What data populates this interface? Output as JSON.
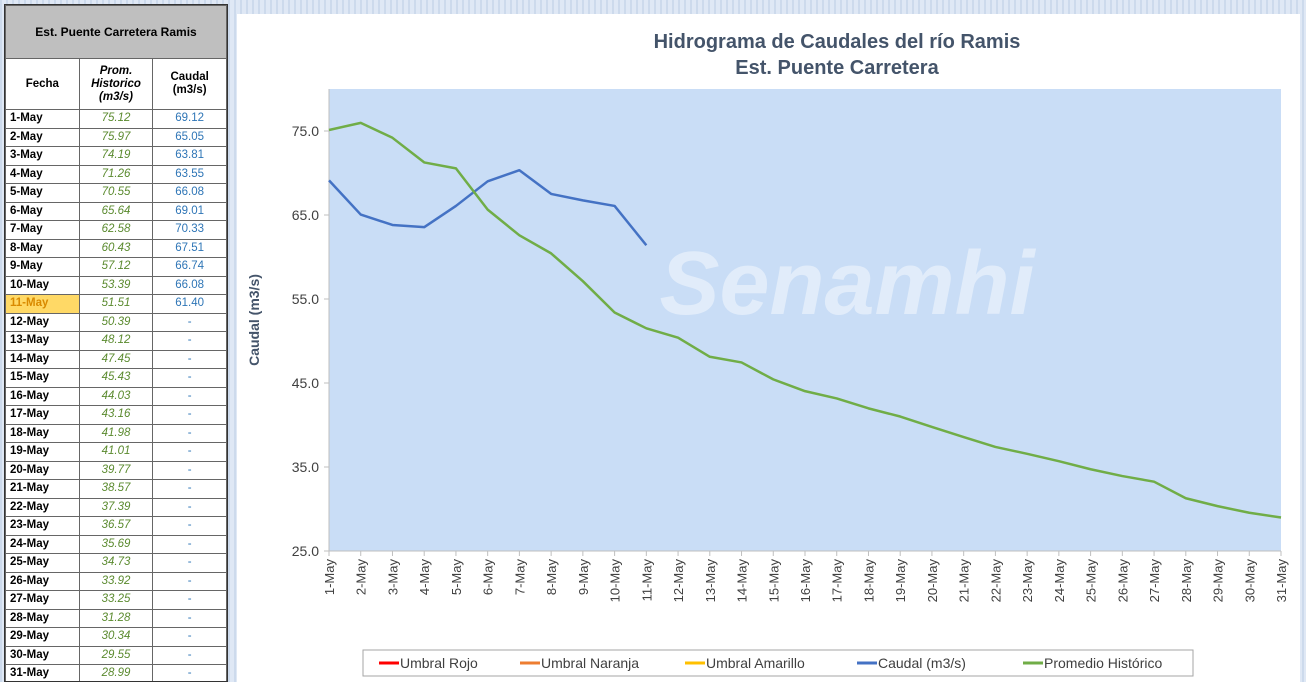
{
  "table": {
    "title": "Est. Puente Carretera Ramis",
    "headers": [
      "Fecha",
      "Prom. Historico (m3/s)",
      "Caudal (m3/s)"
    ],
    "rows": [
      [
        "1-May",
        "75.12",
        "69.12"
      ],
      [
        "2-May",
        "75.97",
        "65.05"
      ],
      [
        "3-May",
        "74.19",
        "63.81"
      ],
      [
        "4-May",
        "71.26",
        "63.55"
      ],
      [
        "5-May",
        "70.55",
        "66.08"
      ],
      [
        "6-May",
        "65.64",
        "69.01"
      ],
      [
        "7-May",
        "62.58",
        "70.33"
      ],
      [
        "8-May",
        "60.43",
        "67.51"
      ],
      [
        "9-May",
        "57.12",
        "66.74"
      ],
      [
        "10-May",
        "53.39",
        "66.08"
      ],
      [
        "11-May",
        "51.51",
        "61.40"
      ],
      [
        "12-May",
        "50.39",
        "-"
      ],
      [
        "13-May",
        "48.12",
        "-"
      ],
      [
        "14-May",
        "47.45",
        "-"
      ],
      [
        "15-May",
        "45.43",
        "-"
      ],
      [
        "16-May",
        "44.03",
        "-"
      ],
      [
        "17-May",
        "43.16",
        "-"
      ],
      [
        "18-May",
        "41.98",
        "-"
      ],
      [
        "19-May",
        "41.01",
        "-"
      ],
      [
        "20-May",
        "39.77",
        "-"
      ],
      [
        "21-May",
        "38.57",
        "-"
      ],
      [
        "22-May",
        "37.39",
        "-"
      ],
      [
        "23-May",
        "36.57",
        "-"
      ],
      [
        "24-May",
        "35.69",
        "-"
      ],
      [
        "25-May",
        "34.73",
        "-"
      ],
      [
        "26-May",
        "33.92",
        "-"
      ],
      [
        "27-May",
        "33.25",
        "-"
      ],
      [
        "28-May",
        "31.28",
        "-"
      ],
      [
        "29-May",
        "30.34",
        "-"
      ],
      [
        "30-May",
        "29.55",
        "-"
      ],
      [
        "31-May",
        "28.99",
        "-"
      ]
    ],
    "highlight_row": 10
  },
  "chart_data": {
    "type": "line",
    "title": "Hidrograma de Caudales del río Ramis",
    "subtitle": "Est. Puente Carretera",
    "ylabel": "Caudal (m3/s)",
    "watermark": "Senamhi",
    "categories": [
      "1-May",
      "2-May",
      "3-May",
      "4-May",
      "5-May",
      "6-May",
      "7-May",
      "8-May",
      "9-May",
      "10-May",
      "11-May",
      "12-May",
      "13-May",
      "14-May",
      "15-May",
      "16-May",
      "17-May",
      "18-May",
      "19-May",
      "20-May",
      "21-May",
      "22-May",
      "23-May",
      "24-May",
      "25-May",
      "26-May",
      "27-May",
      "28-May",
      "29-May",
      "30-May",
      "31-May"
    ],
    "ylim": [
      25,
      80
    ],
    "yticks": [
      {
        "value": 25,
        "label": "25.0"
      },
      {
        "value": 35,
        "label": "35.0"
      },
      {
        "value": 45,
        "label": "45.0"
      },
      {
        "value": 55,
        "label": "55.0"
      },
      {
        "value": 65,
        "label": "65.0"
      },
      {
        "value": 75,
        "label": "75.0"
      }
    ],
    "series": [
      {
        "name": "Umbral Rojo",
        "color": "#ff0000",
        "values": [
          null,
          null,
          null,
          null,
          null,
          null,
          null,
          null,
          null,
          null,
          null,
          null,
          null,
          null,
          null,
          null,
          null,
          null,
          null,
          null,
          null,
          null,
          null,
          null,
          null,
          null,
          null,
          null,
          null,
          null,
          null
        ]
      },
      {
        "name": "Umbral Naranja",
        "color": "#ed7d31",
        "values": [
          null,
          null,
          null,
          null,
          null,
          null,
          null,
          null,
          null,
          null,
          null,
          null,
          null,
          null,
          null,
          null,
          null,
          null,
          null,
          null,
          null,
          null,
          null,
          null,
          null,
          null,
          null,
          null,
          null,
          null,
          null
        ]
      },
      {
        "name": "Umbral Amarillo",
        "color": "#ffc000",
        "values": [
          null,
          null,
          null,
          null,
          null,
          null,
          null,
          null,
          null,
          null,
          null,
          null,
          null,
          null,
          null,
          null,
          null,
          null,
          null,
          null,
          null,
          null,
          null,
          null,
          null,
          null,
          null,
          null,
          null,
          null,
          null
        ]
      },
      {
        "name": "Caudal (m3/s)",
        "color": "#4472c4",
        "values": [
          69.12,
          65.05,
          63.81,
          63.55,
          66.08,
          69.01,
          70.33,
          67.51,
          66.74,
          66.08,
          61.4,
          null,
          null,
          null,
          null,
          null,
          null,
          null,
          null,
          null,
          null,
          null,
          null,
          null,
          null,
          null,
          null,
          null,
          null,
          null,
          null
        ]
      },
      {
        "name": "Promedio Histórico",
        "color": "#70ad47",
        "values": [
          75.12,
          75.97,
          74.19,
          71.26,
          70.55,
          65.64,
          62.58,
          60.43,
          57.12,
          53.39,
          51.51,
          50.39,
          48.12,
          47.45,
          45.43,
          44.03,
          43.16,
          41.98,
          41.01,
          39.77,
          38.57,
          37.39,
          36.57,
          35.69,
          34.73,
          33.92,
          33.25,
          31.28,
          30.34,
          29.55,
          28.99
        ]
      }
    ]
  }
}
